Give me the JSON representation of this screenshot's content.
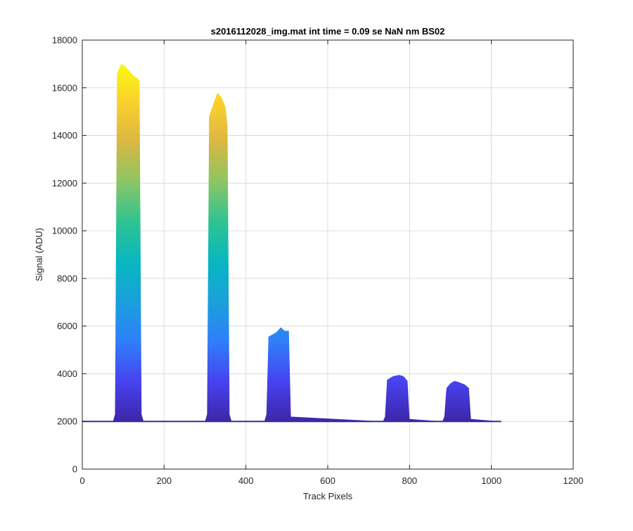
{
  "chart_data": {
    "type": "area",
    "title": "s2016112028_img.mat int time = 0.09 se  NaN nm BS02",
    "xlabel": "Track Pixels",
    "ylabel": "Signal (ADU)",
    "xlim": [
      0,
      1200
    ],
    "ylim": [
      0,
      18000
    ],
    "xticks": [
      0,
      200,
      400,
      600,
      800,
      1000,
      1200
    ],
    "yticks": [
      0,
      2000,
      4000,
      6000,
      8000,
      10000,
      12000,
      14000,
      16000,
      18000
    ],
    "xtick_labels": [
      "0",
      "200",
      "400",
      "600",
      "800",
      "1000",
      "1200"
    ],
    "ytick_labels": [
      "0",
      "2000",
      "4000",
      "6000",
      "8000",
      "10000",
      "12000",
      "14000",
      "16000",
      "18000"
    ],
    "grid": true,
    "colormap": "parula",
    "colors": {
      "baseline": "#2b3596",
      "parula_stops": [
        "#3e26a8",
        "#4743f0",
        "#2f7ffa",
        "#1aa0db",
        "#08b7c0",
        "#30c391",
        "#8cc564",
        "#dbb742",
        "#fbd12c",
        "#f9fb0e"
      ]
    },
    "x_extent": [
      0,
      1024
    ],
    "baseline_level": 2000,
    "series": [
      {
        "x": [
          0,
          75,
          80,
          85,
          95,
          105,
          115,
          125,
          135,
          140,
          145,
          150,
          300,
          305,
          310,
          320,
          330,
          340,
          350,
          355,
          360,
          365,
          445,
          450,
          455,
          465,
          475,
          485,
          495,
          505,
          510,
          735,
          740,
          745,
          760,
          775,
          785,
          795,
          800,
          880,
          885,
          890,
          900,
          910,
          920,
          935,
          945,
          950,
          1024
        ],
        "y": [
          2000,
          2000,
          2300,
          16600,
          17000,
          16900,
          16700,
          16500,
          16400,
          16300,
          2300,
          2000,
          2000,
          2300,
          14800,
          15300,
          15800,
          15600,
          15200,
          14400,
          2300,
          2000,
          2000,
          2300,
          5550,
          5650,
          5750,
          5950,
          5800,
          5800,
          2200,
          2000,
          2200,
          3750,
          3900,
          3950,
          3900,
          3700,
          2100,
          2000,
          2200,
          3400,
          3600,
          3700,
          3650,
          3550,
          3400,
          2100,
          2000
        ]
      }
    ]
  }
}
